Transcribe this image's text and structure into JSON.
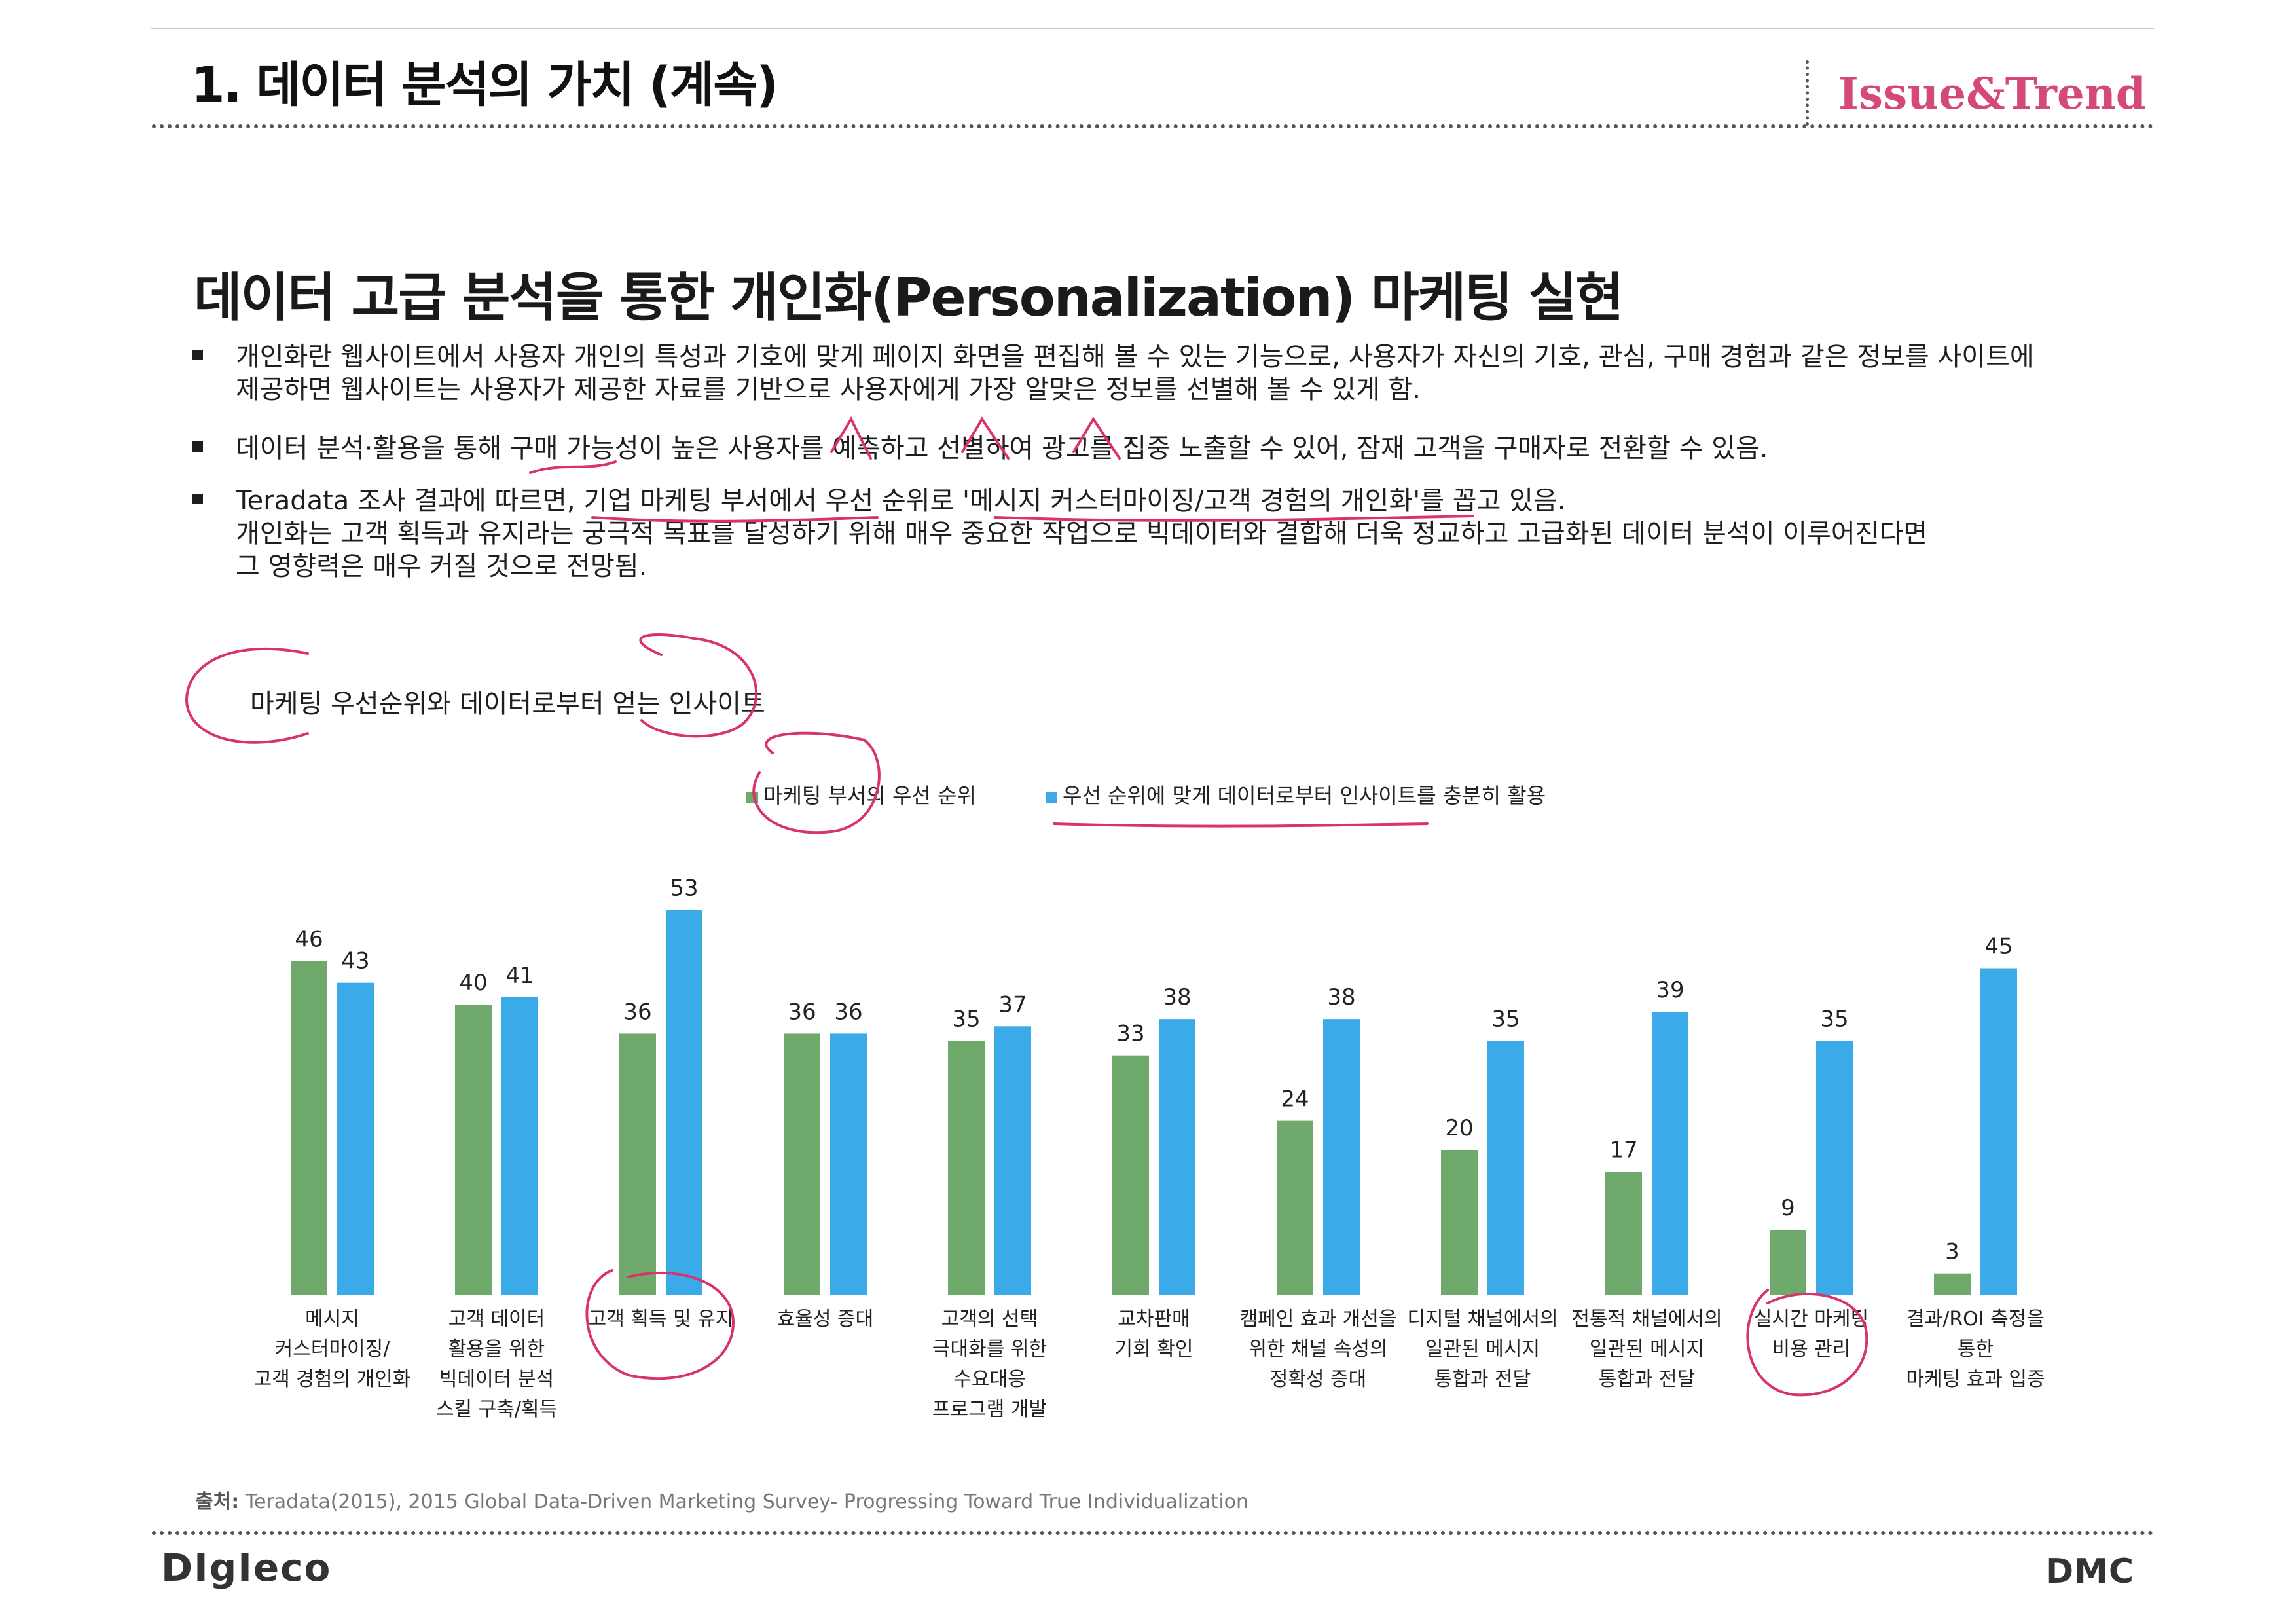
{
  "header": {
    "title": "1. 데이터 분석의 가치 (계속)",
    "brand": "Issue&Trend"
  },
  "section": {
    "heading": "데이터 고급 분석을 통한 개인화(Personalization) 마케팅 실현",
    "bullets": [
      {
        "lines": [
          "개인화란 웹사이트에서 사용자 개인의 특성과 기호에 맞게 페이지 화면을 편집해 볼 수  있는 기능으로, 사용자가 자신의 기호, 관심, 구매 경험과 같은 정보를 사이트에",
          "제공하면 웹사이트는 사용자가 제공한 자료를 기반으로 사용자에게 가장 알맞은 정보를 선별해 볼 수 있게 함."
        ]
      },
      {
        "lines": [
          "데이터 분석·활용을 통해 구매 가능성이 높은 사용자를 예측하고 선별하여 광고를 집중 노출할 수 있어, 잠재 고객을 구매자로 전환할 수 있음."
        ]
      },
      {
        "lines": [
          "Teradata 조사 결과에 따르면, 기업 마케팅 부서에서 우선 순위로 '메시지 커스터마이징/고객 경험의 개인화'를 꼽고 있음.",
          "개인화는 고객 획득과 유지라는 궁극적 목표를 달성하기 위해 매우 중요한 작업으로 빅데이터와 결합해 더욱 정교하고 고급화된 데이터 분석이 이루어진다면",
          "그 영향력은 매우 커질 것으로 전망됨."
        ]
      }
    ],
    "chart_heading": "마케팅 우선순위와 데이터로부터 얻는 인사이트"
  },
  "chart_data": {
    "type": "bar",
    "title": "",
    "xlabel": "",
    "ylabel": "",
    "ylim": [
      0,
      60
    ],
    "grid": false,
    "legend_position": "top-center",
    "categories": [
      [
        "메시지",
        "커스터마이징/",
        "고객 경험의 개인화"
      ],
      [
        "고객 데이터",
        "활용을 위한",
        "빅데이터 분석",
        "스킬 구축/획득"
      ],
      [
        "고객 획득 및 유지"
      ],
      [
        "효율성 증대"
      ],
      [
        "고객의 선택",
        "극대화를 위한",
        "수요대응",
        "프로그램 개발"
      ],
      [
        "교차판매",
        "기회 확인"
      ],
      [
        "캠페인 효과 개선을",
        "위한 채널 속성의",
        "정확성 증대"
      ],
      [
        "디지털 채널에서의",
        "일관된 메시지",
        "통합과 전달"
      ],
      [
        "전통적 채널에서의",
        "일관된 메시지",
        "통합과 전달"
      ],
      [
        "실시간 마케팅",
        "비용 관리"
      ],
      [
        "결과/ROI 측정을",
        "통한",
        "마케팅 효과 입증"
      ]
    ],
    "series": [
      {
        "name": "마케팅 부서의 우선 순위",
        "color": "#6fa96b",
        "values": [
          46,
          40,
          36,
          36,
          35,
          33,
          24,
          20,
          17,
          9,
          3
        ]
      },
      {
        "name": "우선 순위에 맞게 데이터로부터 인사이트를 충분히 활용",
        "color": "#3aaae8",
        "values": [
          43,
          41,
          53,
          36,
          37,
          38,
          38,
          35,
          39,
          35,
          45
        ]
      }
    ]
  },
  "source": {
    "label": "출처:",
    "text": " Teradata(2015), 2015 Global Data-Driven Marketing Survey- Progressing Toward True Individualization"
  },
  "footer": {
    "left_logo": "DIgIeco",
    "right_logo": "DMC"
  },
  "colors": {
    "brand": "#d4487a",
    "annotation": "#d8346a"
  }
}
